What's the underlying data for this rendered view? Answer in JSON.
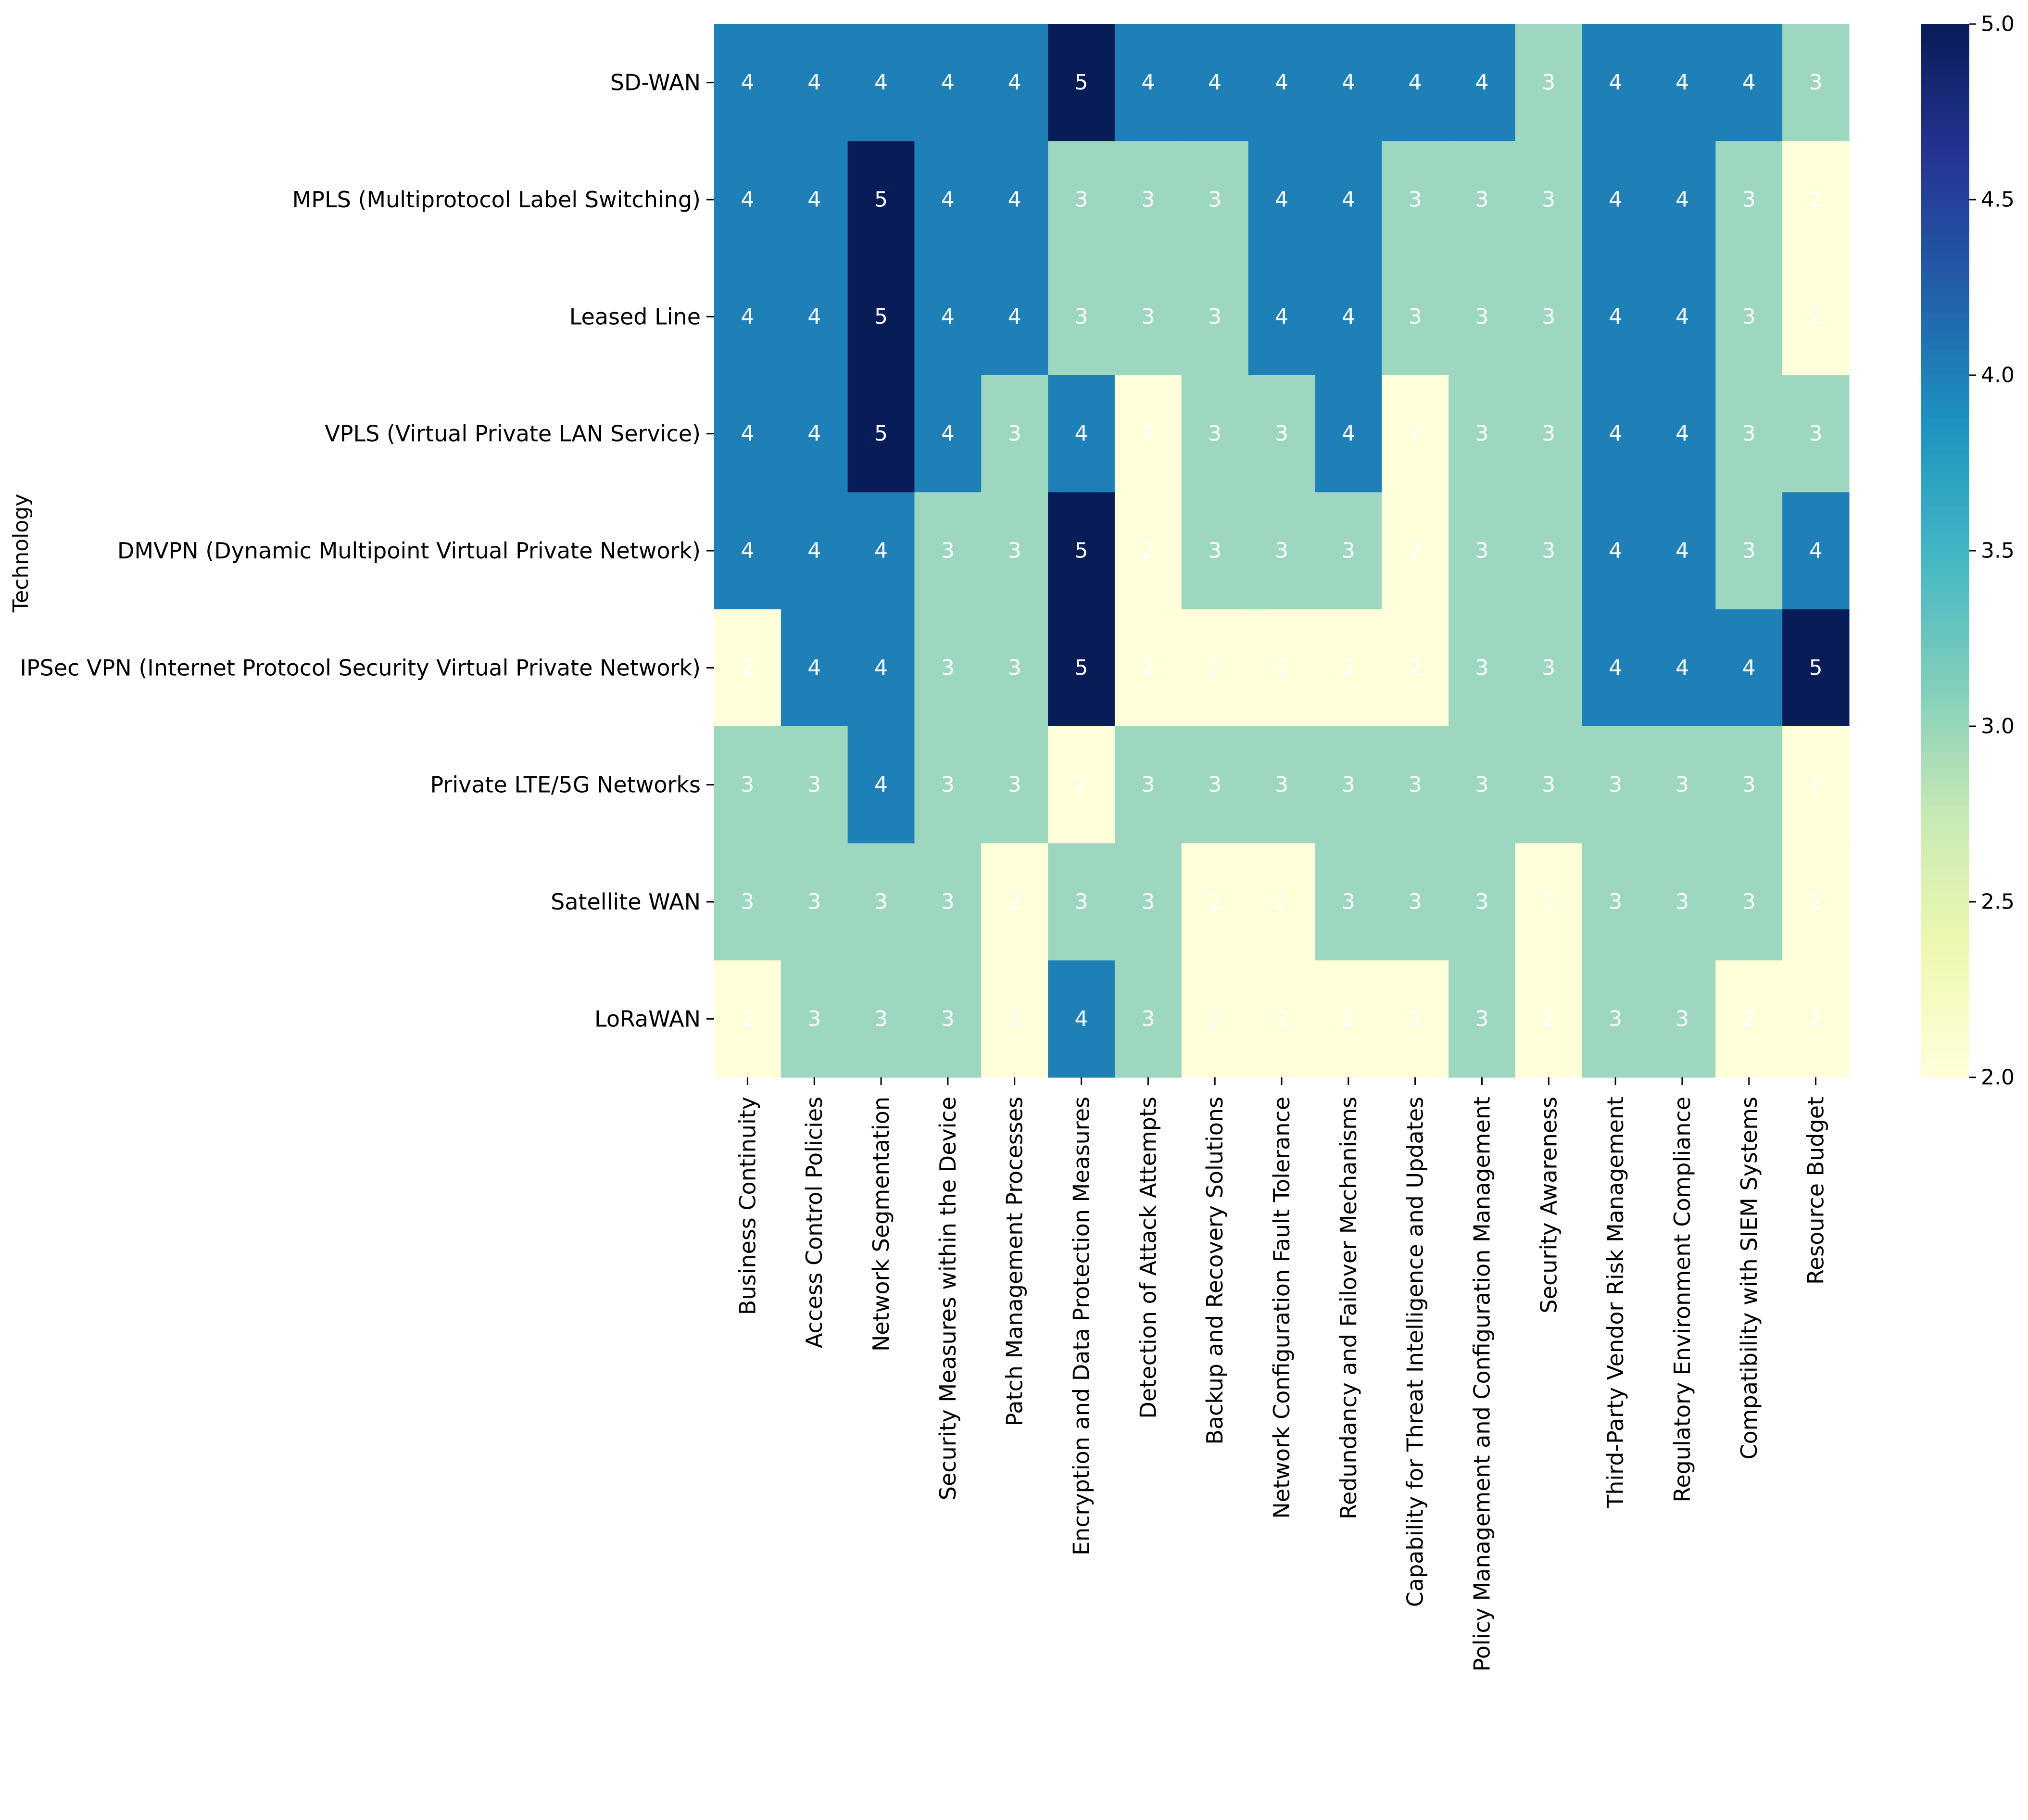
{
  "chart_data": {
    "type": "heatmap",
    "title": "",
    "xlabel": "",
    "ylabel": "Technology",
    "rows": [
      "SD-WAN",
      "MPLS (Multiprotocol Label Switching)",
      "Leased Line",
      "VPLS (Virtual Private LAN Service)",
      "DMVPN (Dynamic Multipoint Virtual Private Network)",
      "IPSec VPN (Internet Protocol Security Virtual Private Network)",
      "Private LTE/5G Networks",
      "Satellite WAN",
      "LoRaWAN"
    ],
    "columns": [
      "Business Continuity",
      "Access Control Policies",
      "Network Segmentation",
      "Security Measures within the Device",
      "Patch Management Processes",
      "Encryption and Data Protection Measures",
      "Detection of Attack Attempts",
      "Backup and Recovery Solutions",
      "Network Configuration Fault Tolerance",
      "Redundancy and Failover Mechanisms",
      "Capability for Threat Intelligence and Updates",
      "Policy Management and Configuration Management",
      "Security Awareness",
      "Third-Party Vendor Risk Management",
      "Regulatory Environment Compliance",
      "Compatibility with SIEM Systems",
      "Resource Budget"
    ],
    "values": [
      [
        4,
        4,
        4,
        4,
        4,
        5,
        4,
        4,
        4,
        4,
        4,
        4,
        3,
        4,
        4,
        4,
        3
      ],
      [
        4,
        4,
        5,
        4,
        4,
        3,
        3,
        3,
        4,
        4,
        3,
        3,
        3,
        4,
        4,
        3,
        2
      ],
      [
        4,
        4,
        5,
        4,
        4,
        3,
        3,
        3,
        4,
        4,
        3,
        3,
        3,
        4,
        4,
        3,
        2
      ],
      [
        4,
        4,
        5,
        4,
        3,
        4,
        2,
        3,
        3,
        4,
        2,
        3,
        3,
        4,
        4,
        3,
        3
      ],
      [
        4,
        4,
        4,
        3,
        3,
        5,
        2,
        3,
        3,
        3,
        2,
        3,
        3,
        4,
        4,
        3,
        4
      ],
      [
        2,
        4,
        4,
        3,
        3,
        5,
        2,
        2,
        2,
        2,
        2,
        3,
        3,
        4,
        4,
        4,
        5
      ],
      [
        3,
        3,
        4,
        3,
        3,
        2,
        3,
        3,
        3,
        3,
        3,
        3,
        3,
        3,
        3,
        3,
        2
      ],
      [
        3,
        3,
        3,
        3,
        2,
        3,
        3,
        2,
        2,
        3,
        3,
        3,
        2,
        3,
        3,
        3,
        2
      ],
      [
        2,
        3,
        3,
        3,
        2,
        4,
        3,
        2,
        2,
        2,
        2,
        3,
        2,
        3,
        3,
        2,
        2
      ]
    ],
    "colorscale": "YlGnBu",
    "vmin": 2.0,
    "vmax": 5.0,
    "colorbar_ticks": [
      "2.0",
      "2.5",
      "3.0",
      "3.5",
      "4.0",
      "4.5",
      "5.0"
    ],
    "annotate": true,
    "colors": {
      "c2": "#ffffd9",
      "c3": "#9dd7c0",
      "c4": "#1f80b8",
      "c5": "#081d58",
      "text": "#ffffff",
      "axis": "#000000"
    }
  }
}
